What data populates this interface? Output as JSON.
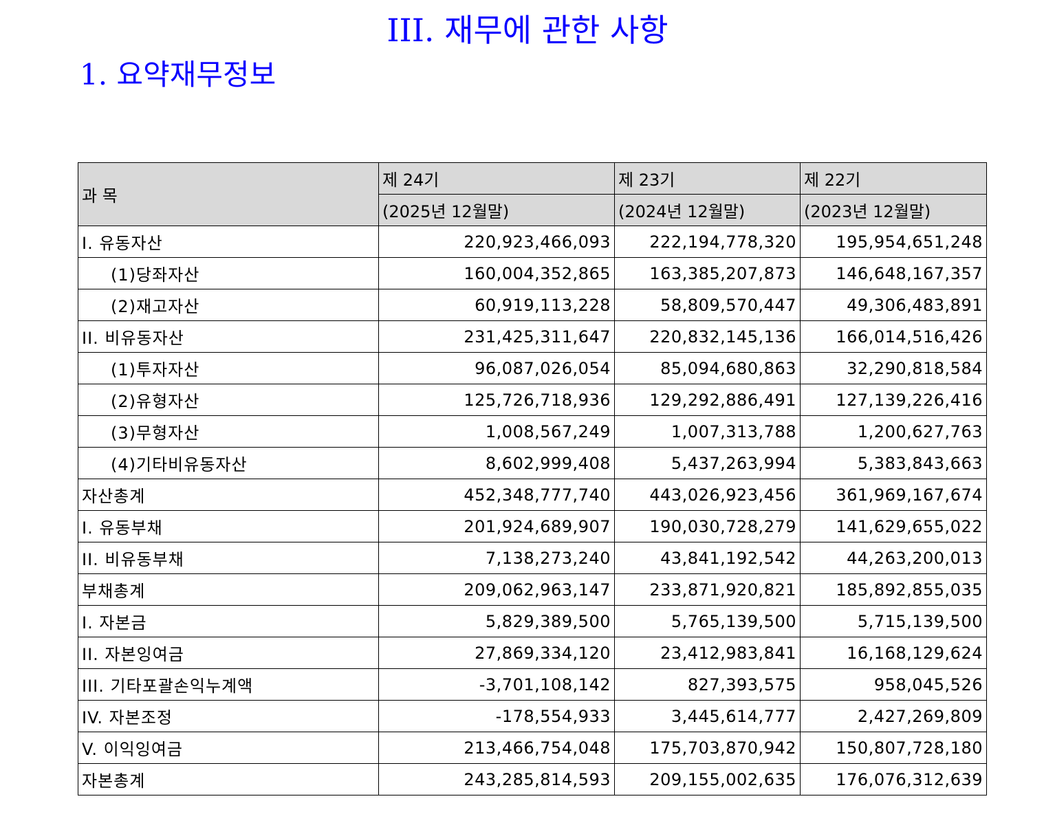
{
  "document": {
    "section_title": "III. 재무에 관한 사항",
    "sub_title": "1. 요약재무정보"
  },
  "table": {
    "header": {
      "account_label": "과 목",
      "periods": [
        {
          "term": "제 24기",
          "date": "(2025년 12월말)"
        },
        {
          "term": "제 23기",
          "date": "(2024년 12월말)"
        },
        {
          "term": "제 22기",
          "date": "(2023년 12월말)"
        }
      ]
    },
    "rows": [
      {
        "label": "I. 유동자산",
        "indent": false,
        "values": [
          "220,923,466,093",
          "222,194,778,320",
          "195,954,651,248"
        ]
      },
      {
        "label": "(1)당좌자산",
        "indent": true,
        "values": [
          "160,004,352,865",
          "163,385,207,873",
          "146,648,167,357"
        ]
      },
      {
        "label": "(2)재고자산",
        "indent": true,
        "values": [
          "60,919,113,228",
          "58,809,570,447",
          "49,306,483,891"
        ]
      },
      {
        "label": "II. 비유동자산",
        "indent": false,
        "values": [
          "231,425,311,647",
          "220,832,145,136",
          "166,014,516,426"
        ]
      },
      {
        "label": "(1)투자자산",
        "indent": true,
        "values": [
          "96,087,026,054",
          "85,094,680,863",
          "32,290,818,584"
        ]
      },
      {
        "label": "(2)유형자산",
        "indent": true,
        "values": [
          "125,726,718,936",
          "129,292,886,491",
          "127,139,226,416"
        ]
      },
      {
        "label": "(3)무형자산",
        "indent": true,
        "values": [
          "1,008,567,249",
          "1,007,313,788",
          "1,200,627,763"
        ]
      },
      {
        "label": "(4)기타비유동자산",
        "indent": true,
        "values": [
          "8,602,999,408",
          "5,437,263,994",
          "5,383,843,663"
        ]
      },
      {
        "label": "자산총계",
        "indent": false,
        "values": [
          "452,348,777,740",
          "443,026,923,456",
          "361,969,167,674"
        ]
      },
      {
        "label": "I. 유동부채",
        "indent": false,
        "values": [
          "201,924,689,907",
          "190,030,728,279",
          "141,629,655,022"
        ]
      },
      {
        "label": "II. 비유동부채",
        "indent": false,
        "values": [
          "7,138,273,240",
          "43,841,192,542",
          "44,263,200,013"
        ]
      },
      {
        "label": "부채총계",
        "indent": false,
        "values": [
          "209,062,963,147",
          "233,871,920,821",
          "185,892,855,035"
        ]
      },
      {
        "label": "I. 자본금",
        "indent": false,
        "values": [
          "5,829,389,500",
          "5,765,139,500",
          "5,715,139,500"
        ]
      },
      {
        "label": "II. 자본잉여금",
        "indent": false,
        "values": [
          "27,869,334,120",
          "23,412,983,841",
          "16,168,129,624"
        ]
      },
      {
        "label": "III. 기타포괄손익누계액",
        "indent": false,
        "values": [
          "-3,701,108,142",
          "827,393,575",
          "958,045,526"
        ]
      },
      {
        "label": "IV. 자본조정",
        "indent": false,
        "values": [
          "-178,554,933",
          "3,445,614,777",
          "2,427,269,809"
        ]
      },
      {
        "label": "V. 이익잉여금",
        "indent": false,
        "values": [
          "213,466,754,048",
          "175,703,870,942",
          "150,807,728,180"
        ]
      },
      {
        "label": "자본총계",
        "indent": false,
        "values": [
          "243,285,814,593",
          "209,155,002,635",
          "176,076,312,639"
        ]
      }
    ]
  },
  "colors": {
    "title": "#0a00ff",
    "header_bg": "#d9d9d9",
    "border": "#000000"
  }
}
